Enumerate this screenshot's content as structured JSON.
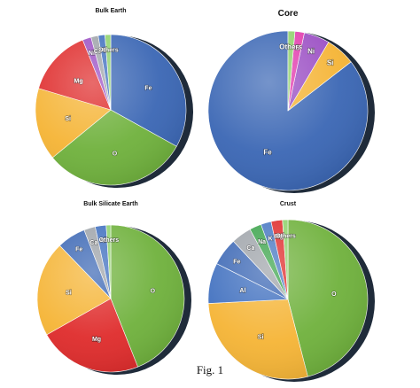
{
  "figure": {
    "caption": "Fig. 1"
  },
  "colors": {
    "Fe": "#3a66b4",
    "O": "#6fb13c",
    "Si": "#f5b435",
    "Mg": "#df2b2b",
    "Ni": "#9b4fc4",
    "S": "#e23cae",
    "Ca": "#9ea3a9",
    "Al": "#3f6fbf",
    "Na": "#3aa34a",
    "K": "#4777c2",
    "Others": "#8fd16c"
  },
  "chart_data": [
    {
      "type": "pie",
      "title": "Bulk Earth",
      "slices": [
        {
          "label": "Fe",
          "value": 32.1
        },
        {
          "label": "O",
          "value": 30.1
        },
        {
          "label": "Si",
          "value": 15.1
        },
        {
          "label": "Mg",
          "value": 13.9
        },
        {
          "label": "Ni",
          "value": 1.8
        },
        {
          "label": "Ca",
          "value": 1.5
        },
        {
          "label": "Al",
          "value": 1.4
        },
        {
          "label": "Others",
          "value": 1.2
        }
      ]
    },
    {
      "type": "pie",
      "title": "Core",
      "slices": [
        {
          "label": "Fe",
          "value": 85.5
        },
        {
          "label": "Si",
          "value": 6.0
        },
        {
          "label": "Ni",
          "value": 5.2
        },
        {
          "label": "S",
          "value": 1.9
        },
        {
          "label": "Others",
          "value": 1.4
        }
      ]
    },
    {
      "type": "pie",
      "title": "Bulk Silicate Earth",
      "slices": [
        {
          "label": "O",
          "value": 44.0
        },
        {
          "label": "Mg",
          "value": 22.8
        },
        {
          "label": "Si",
          "value": 21.0
        },
        {
          "label": "Fe",
          "value": 6.3
        },
        {
          "label": "Ca",
          "value": 2.5
        },
        {
          "label": "Al",
          "value": 2.4
        },
        {
          "label": "Others",
          "value": 1.0
        }
      ]
    },
    {
      "type": "pie",
      "title": "Crust",
      "slices": [
        {
          "label": "O",
          "value": 46.0
        },
        {
          "label": "Si",
          "value": 28.2
        },
        {
          "label": "Al",
          "value": 8.2
        },
        {
          "label": "Fe",
          "value": 5.6
        },
        {
          "label": "Ca",
          "value": 4.1
        },
        {
          "label": "Na",
          "value": 2.4
        },
        {
          "label": "K",
          "value": 2.1
        },
        {
          "label": "Mg",
          "value": 2.3
        },
        {
          "label": "Others",
          "value": 1.1
        }
      ]
    }
  ]
}
